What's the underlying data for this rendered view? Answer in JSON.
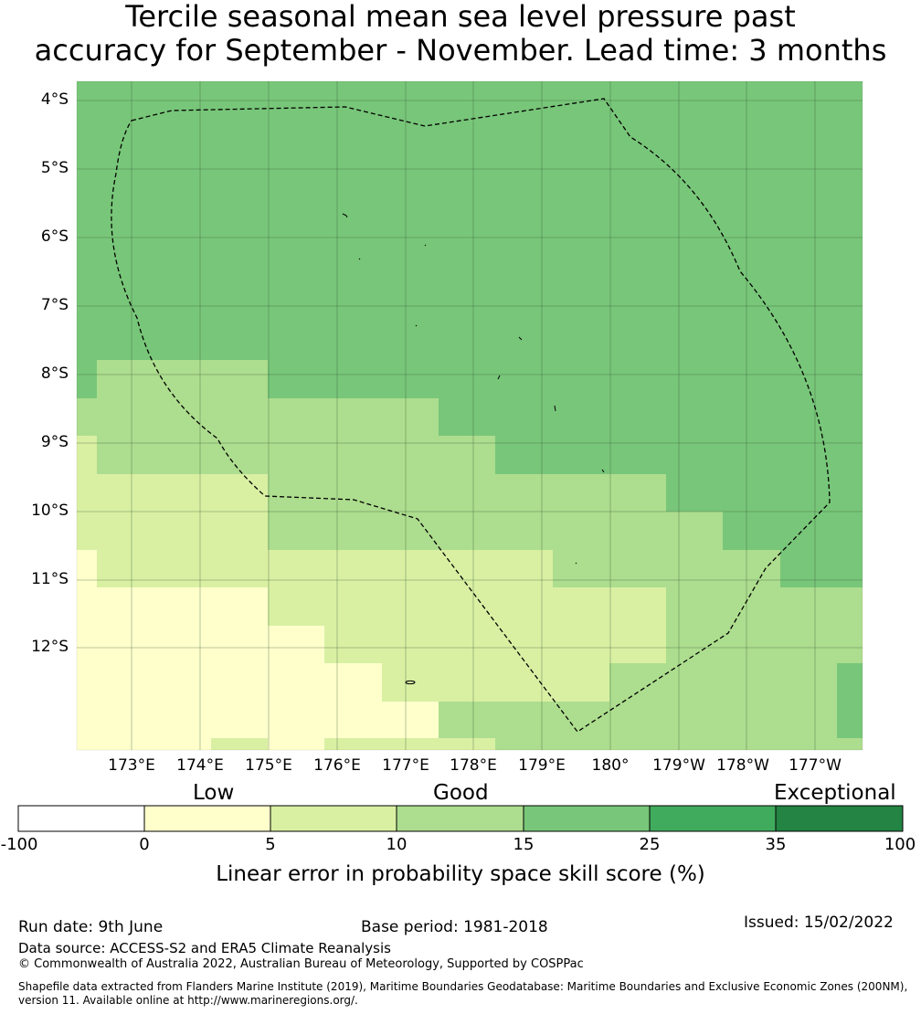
{
  "title": {
    "line1": "Tercile seasonal mean sea level pressure past",
    "line2": "accuracy for September - November. Lead time: 3 months"
  },
  "map": {
    "lat_labels": [
      "4°S",
      "5°S",
      "6°S",
      "7°S",
      "8°S",
      "9°S",
      "10°S",
      "11°S",
      "12°S"
    ],
    "lon_labels": [
      "173°E",
      "174°E",
      "175°E",
      "176°E",
      "177°E",
      "178°E",
      "179°E",
      "180°",
      "179°W",
      "178°W",
      "177°W"
    ],
    "boundary_style": "dashed black line (maritime EEZ boundary)",
    "colors": {
      "c0_5": "#ffffcc",
      "c5_10": "#d9f0a3",
      "c10_15": "#addd8e",
      "c15_25": "#78c679",
      "c25_35": "#41ab5d",
      "c35_100": "#238443",
      "below_0": "#ffffff"
    }
  },
  "colorbar": {
    "categories": [
      "Low",
      "Good",
      "Exceptional"
    ],
    "ticks": [
      "-100",
      "0",
      "5",
      "10",
      "15",
      "25",
      "35",
      "100"
    ],
    "label": "Linear error in probability space skill score (%)"
  },
  "footer": {
    "run_date": "Run date: 9th June",
    "base_period": "Base period: 1981-2018",
    "issued": "Issued: 15/02/2022",
    "data_source": "Data source: ACCESS-S2 and ERA5 Climate Reanalysis",
    "copyright": "© Commonwealth of Australia 2022, Australian Bureau of Meteorology, Supported by COSPPac",
    "shapefile_line1": "Shapefile data extracted from Flanders Marine Institute (2019), Maritime Boundaries Geodatabase: Maritime Boundaries and Exclusive Economic Zones (200NM),",
    "shapefile_line2": "version 11. Available online at http://www.marineregions.org/."
  }
}
